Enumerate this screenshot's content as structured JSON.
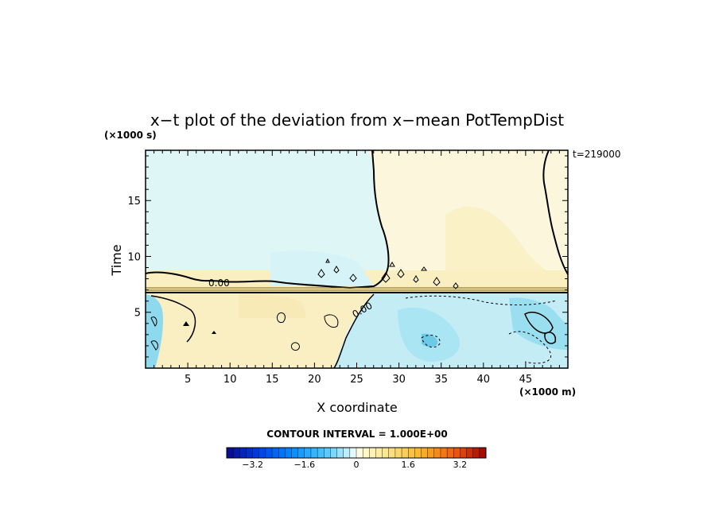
{
  "chart_data": {
    "type": "heatmap",
    "title": "x−t plot of the deviation from x−mean PotTempDist",
    "xlabel": "X coordinate",
    "ylabel": "Time",
    "x_unit": "(×1000 m)",
    "y_unit": "(×1000 s)",
    "time_stamp": "t=219000",
    "xlim": [
      0,
      50
    ],
    "ylim": [
      0,
      19.5
    ],
    "x_ticks": [
      5,
      10,
      15,
      20,
      25,
      30,
      35,
      40,
      45
    ],
    "y_ticks": [
      5,
      10,
      15
    ],
    "contour_label": "0.00",
    "contour_interval_text": "CONTOUR INTERVAL = 1.000E+00",
    "colorbar": {
      "range": [
        -4,
        4
      ],
      "step": 0.2,
      "tick_values": [
        -3.2,
        -1.6,
        0,
        1.6,
        3.2
      ],
      "tick_labels": [
        "−3.2",
        "−1.6",
        "0",
        "1.6",
        "3.2"
      ]
    },
    "regions": [
      {
        "name": "upper-left",
        "value": -0.3,
        "color": "#dff6f6"
      },
      {
        "name": "upper-right",
        "value": 0.3,
        "color": "#fbf6dc"
      },
      {
        "name": "right-center-bulge",
        "value": 0.6,
        "color": "#fbf1c7"
      },
      {
        "name": "band-t7",
        "value": 0.8,
        "color": "#faefc0"
      },
      {
        "name": "lower-left",
        "value": 0.6,
        "color": "#faefc3"
      },
      {
        "name": "lower-right",
        "value": -0.9,
        "color": "#c4ecf5"
      }
    ]
  }
}
